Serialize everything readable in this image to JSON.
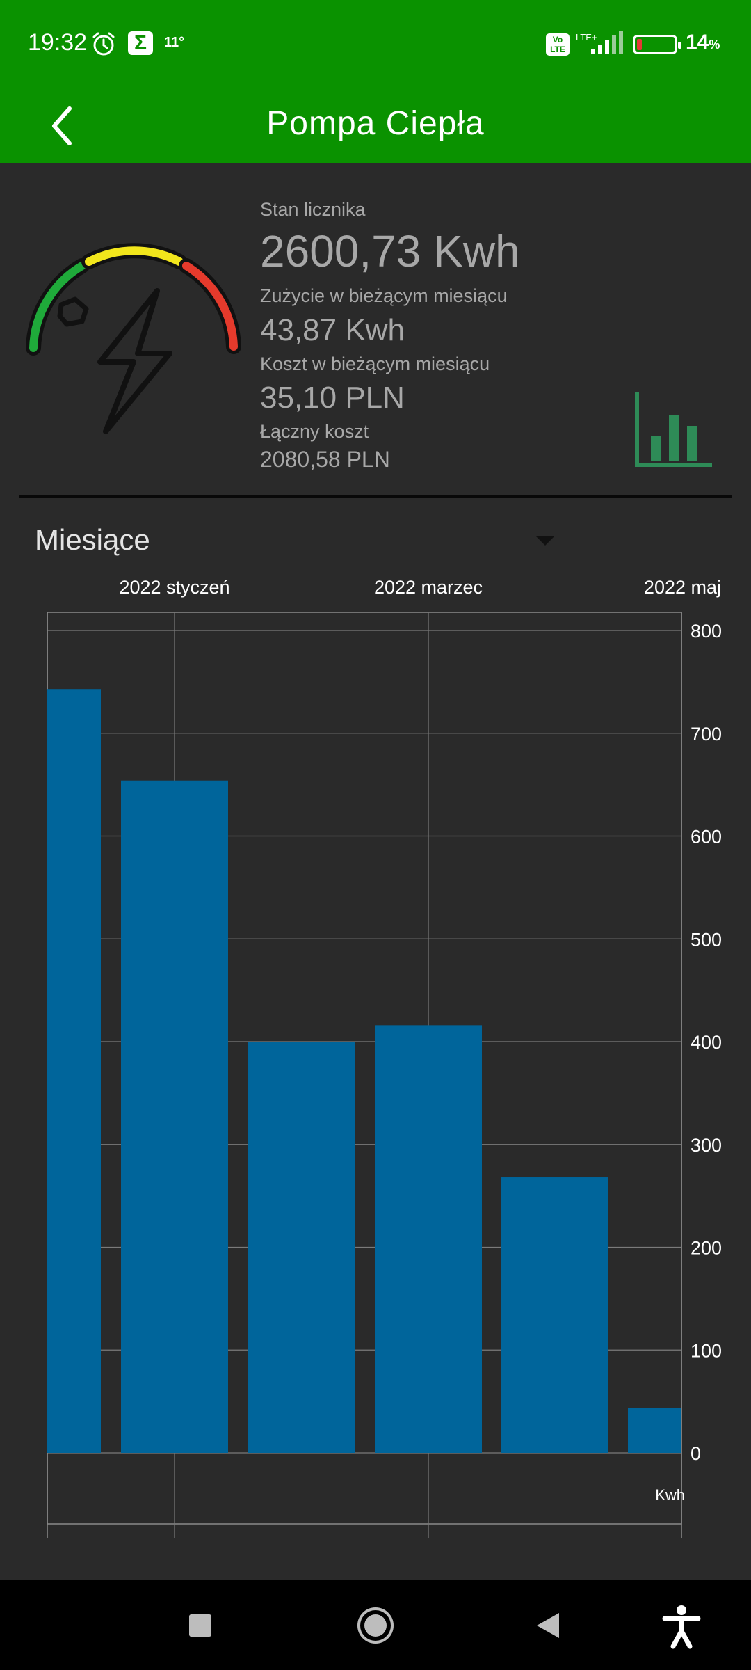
{
  "status": {
    "time": "19:32",
    "temperature": "11°",
    "network": "LTE+",
    "volte": "Vo\nLTE",
    "battery_percent": "14",
    "battery_unit": "%",
    "battery_level": 0.14
  },
  "app_bar": {
    "title": "Pompa Ciepła"
  },
  "summary": {
    "meter_label": "Stan licznika",
    "meter_value": "2600,73 Kwh",
    "usage_label": "Zużycie w bieżącym miesiącu",
    "usage_value": "43,87 Kwh",
    "cost_label": "Koszt w bieżącym miesiącu",
    "cost_value": "35,10 PLN",
    "total_label": "Łączny koszt",
    "total_value": "2080,58 PLN"
  },
  "period_select": {
    "selected": "Miesiące"
  },
  "colors": {
    "brand": "#0a9200",
    "bar": "#00659b",
    "chart_icon": "#2e8b57"
  },
  "chart_data": {
    "type": "bar",
    "top_labels": [
      "2022 styczeń",
      "2022 marzec",
      "2022 maj"
    ],
    "values": [
      743,
      654,
      400,
      416,
      268,
      44
    ],
    "ylim": [
      0,
      800
    ],
    "yticks": [
      0,
      100,
      200,
      300,
      400,
      500,
      600,
      700,
      800
    ],
    "ylabel": "Kwh",
    "grid": true
  }
}
